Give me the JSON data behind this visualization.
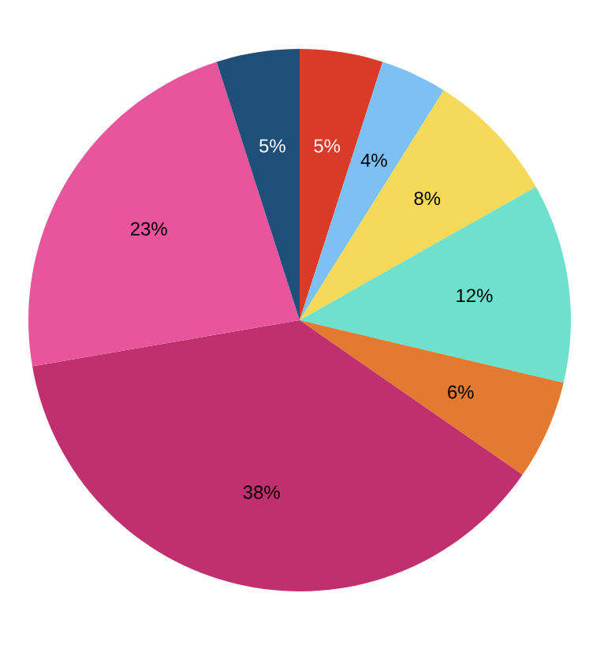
{
  "chart_data": {
    "type": "pie",
    "categories": [
      null,
      null,
      null,
      null,
      null,
      null,
      null,
      null
    ],
    "values": [
      5,
      4,
      8,
      12,
      6,
      38,
      23,
      5
    ],
    "value_labels": [
      "5%",
      "4%",
      "8%",
      "12%",
      "6%",
      "38%",
      "23%",
      "5%"
    ],
    "colors": [
      "#d93b28",
      "#7cc0f5",
      "#f7d95a",
      "#6ee0cc",
      "#e27a32",
      "#c0306e",
      "#e8559c",
      "#1f4e79"
    ]
  }
}
